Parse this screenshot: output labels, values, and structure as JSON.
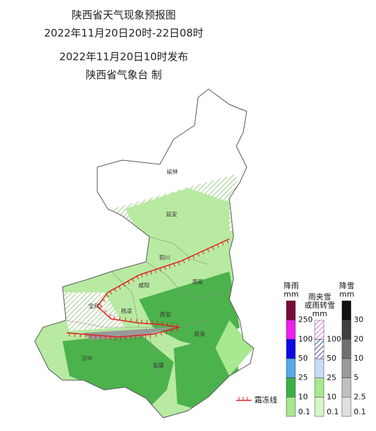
{
  "header": {
    "title": "陕西省天气现象预报图",
    "period": "2022年11月20日20时-22日08时",
    "issued": "2022年11月20日10时发布",
    "agency": "陕西省气象台 制"
  },
  "cities": [
    {
      "name": "榆林"
    },
    {
      "name": "延安"
    },
    {
      "name": "铜川"
    },
    {
      "name": "渭南"
    },
    {
      "name": "咸阳"
    },
    {
      "name": "宝鸡"
    },
    {
      "name": "杨凌"
    },
    {
      "name": "西安"
    },
    {
      "name": "商洛"
    },
    {
      "name": "汉中"
    },
    {
      "name": "安康"
    }
  ],
  "legend": {
    "rain": {
      "title": "降雨",
      "unit": "mm",
      "levels": [
        250,
        100,
        50,
        25,
        10,
        0.1
      ],
      "colors": [
        "#7a0a3c",
        "#f01ef0",
        "#0a0ae6",
        "#5aa8e8",
        "#3cb043",
        "#a8e890"
      ]
    },
    "mixed": {
      "title": "雨夹雪",
      "title2": "或雨转雪",
      "unit": "mm",
      "levels": [
        100,
        50,
        25,
        10,
        0.1
      ],
      "colors": [
        "#6a6ad8",
        "#a0a0f0",
        "#c8dcf5",
        "#a8e890",
        "#d8f5c8"
      ]
    },
    "snow": {
      "title": "降雪",
      "unit": "mm",
      "levels": [
        30,
        20,
        10,
        5,
        2.5,
        0.1
      ],
      "colors": [
        "#101010",
        "#404040",
        "#707070",
        "#9a9a9a",
        "#c0c0c0",
        "#e0e0e0"
      ]
    },
    "frost": "霜冻线"
  }
}
